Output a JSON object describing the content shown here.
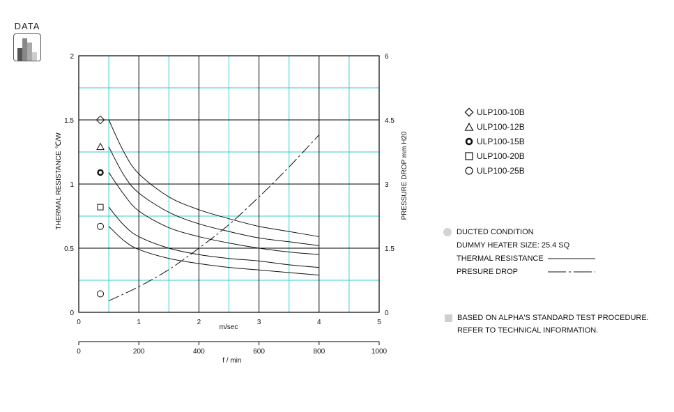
{
  "badge": {
    "label": "DATA",
    "icon": "bar-chart-icon"
  },
  "chart_data": {
    "type": "line",
    "xlabel": "m/sec",
    "x2label": "f / min",
    "ylabel": "THERMAL  RESISTANCE   ℃/W",
    "y2label": "PRESSURE  DROP    mm H20",
    "xlim": [
      0,
      5
    ],
    "x2lim": [
      0,
      1000
    ],
    "ylim": [
      0,
      2
    ],
    "y2lim": [
      0,
      6
    ],
    "xticks": [
      "0",
      "1",
      "2",
      "3",
      "4",
      "5"
    ],
    "x2ticks": [
      "0",
      "200",
      "400",
      "600",
      "800",
      "1000"
    ],
    "yticks": [
      "0",
      "0.5",
      "1",
      "1.5",
      "2"
    ],
    "y2ticks": [
      "0",
      "1.5",
      "3",
      "4.5",
      "6"
    ],
    "grid": true,
    "series": [
      {
        "name": "ULP100-10B",
        "marker": "diamond",
        "x": [
          0.5,
          0.75,
          1,
          1.5,
          2,
          2.5,
          3,
          3.5,
          4
        ],
        "y": [
          1.5,
          1.25,
          1.08,
          0.9,
          0.8,
          0.73,
          0.67,
          0.63,
          0.59
        ]
      },
      {
        "name": "ULP100-12B",
        "marker": "triangle",
        "x": [
          0.5,
          0.75,
          1,
          1.5,
          2,
          2.5,
          3,
          3.5,
          4
        ],
        "y": [
          1.29,
          1.07,
          0.93,
          0.78,
          0.69,
          0.63,
          0.58,
          0.55,
          0.52
        ]
      },
      {
        "name": "ULP100-15B",
        "marker": "bold-circle",
        "x": [
          0.5,
          0.75,
          1,
          1.5,
          2,
          2.5,
          3,
          3.5,
          4
        ],
        "y": [
          1.09,
          0.92,
          0.79,
          0.66,
          0.59,
          0.54,
          0.5,
          0.47,
          0.45
        ]
      },
      {
        "name": "ULP100-20B",
        "marker": "square",
        "x": [
          0.5,
          0.75,
          1,
          1.5,
          2,
          2.5,
          3,
          3.5,
          4
        ],
        "y": [
          0.82,
          0.68,
          0.59,
          0.5,
          0.45,
          0.42,
          0.4,
          0.37,
          0.35
        ]
      },
      {
        "name": "ULP100-25B",
        "marker": "circle",
        "x": [
          0.5,
          0.75,
          1,
          1.5,
          2,
          2.5,
          3,
          3.5,
          4
        ],
        "y": [
          0.67,
          0.56,
          0.49,
          0.42,
          0.38,
          0.35,
          0.33,
          0.31,
          0.29
        ]
      },
      {
        "name": "PRESURE DROP",
        "axis": "right",
        "style": "dash-dot",
        "x": [
          0.5,
          1,
          1.5,
          2,
          2.5,
          3,
          3.5,
          4
        ],
        "y": [
          0.27,
          0.6,
          1.0,
          1.5,
          2.05,
          2.7,
          3.4,
          4.15
        ]
      }
    ],
    "legend": {
      "placement": "right",
      "entries": [
        {
          "label": "ULP100-10B",
          "marker": "diamond"
        },
        {
          "label": "ULP100-12B",
          "marker": "triangle"
        },
        {
          "label": "ULP100-15B",
          "marker": "bold-circle"
        },
        {
          "label": "ULP100-20B",
          "marker": "square"
        },
        {
          "label": "ULP100-25B",
          "marker": "circle"
        }
      ]
    },
    "annotations": {
      "condition": "DUCTED CONDITION",
      "heater": "DUMMY HEATER SIZE: 25.4 SQ",
      "thermal_label": "THERMAL RESISTANCE",
      "pressure_label": "PRESURE DROP",
      "note1": "BASED ON ALPHA'S STANDARD TEST PROCEDURE.",
      "note2": "REFER TO TECHNICAL INFORMATION."
    },
    "colors": {
      "major_grid": "#000000",
      "minor_grid": "#33cccc",
      "line": "#111111"
    }
  }
}
